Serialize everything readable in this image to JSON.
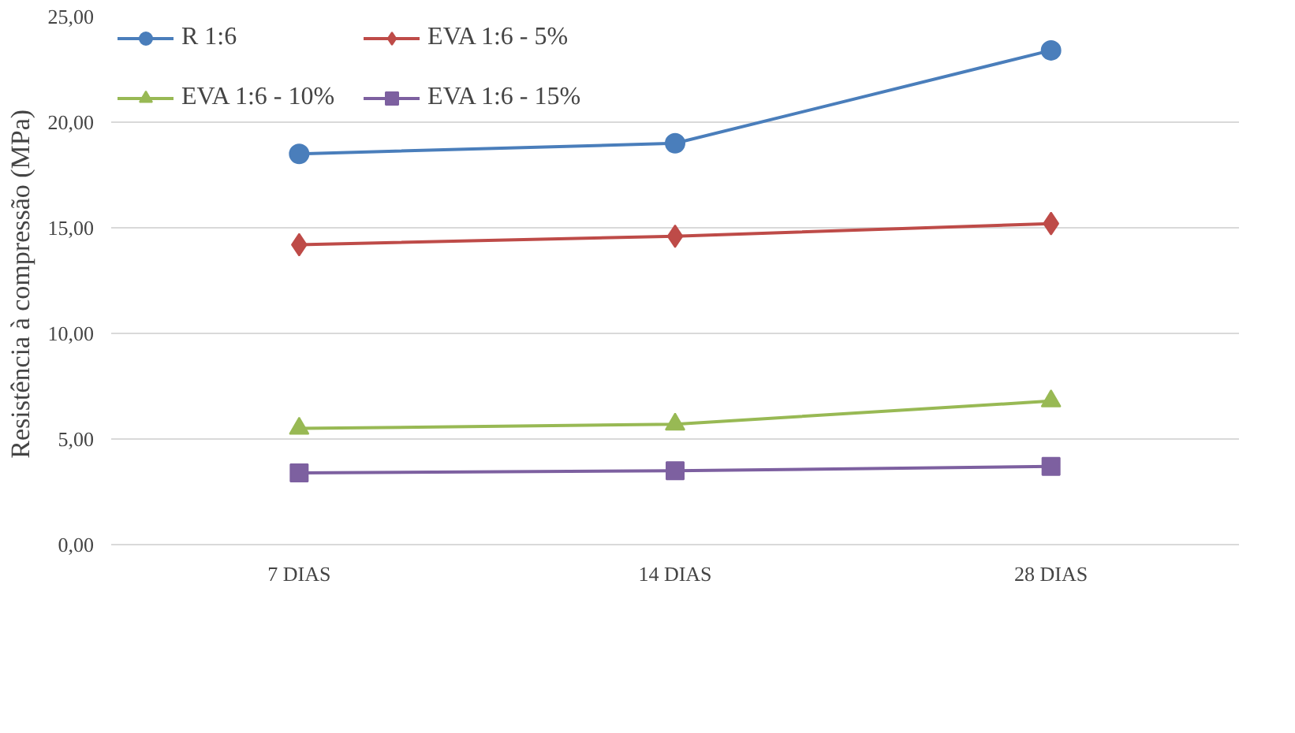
{
  "chart_data": {
    "type": "line",
    "ylabel": "Resistência  à compressão (MPa)",
    "categories": [
      "7 DIAS",
      "14 DIAS",
      "28 DIAS"
    ],
    "series": [
      {
        "name": "R 1:6",
        "color": "#4a7ebb",
        "marker": "circle",
        "values": [
          18.5,
          19.0,
          23.4
        ]
      },
      {
        "name": "EVA 1:6 - 5%",
        "color": "#be4b48",
        "marker": "diamond",
        "values": [
          14.2,
          14.6,
          15.2
        ]
      },
      {
        "name": "EVA 1:6 - 10%",
        "color": "#98b954",
        "marker": "triangle",
        "values": [
          5.5,
          5.7,
          6.8
        ]
      },
      {
        "name": "EVA 1:6 - 15%",
        "color": "#7d60a0",
        "marker": "square",
        "values": [
          3.4,
          3.5,
          3.7
        ]
      }
    ],
    "ylim": [
      0,
      25
    ],
    "yticks": [
      {
        "value": 0,
        "label": "0,00"
      },
      {
        "value": 5,
        "label": "5,00"
      },
      {
        "value": 10,
        "label": "10,00"
      },
      {
        "value": 15,
        "label": "15,00"
      },
      {
        "value": 20,
        "label": "20,00"
      },
      {
        "value": 25,
        "label": "25,00"
      }
    ],
    "grid": "y",
    "legend": "top left"
  }
}
